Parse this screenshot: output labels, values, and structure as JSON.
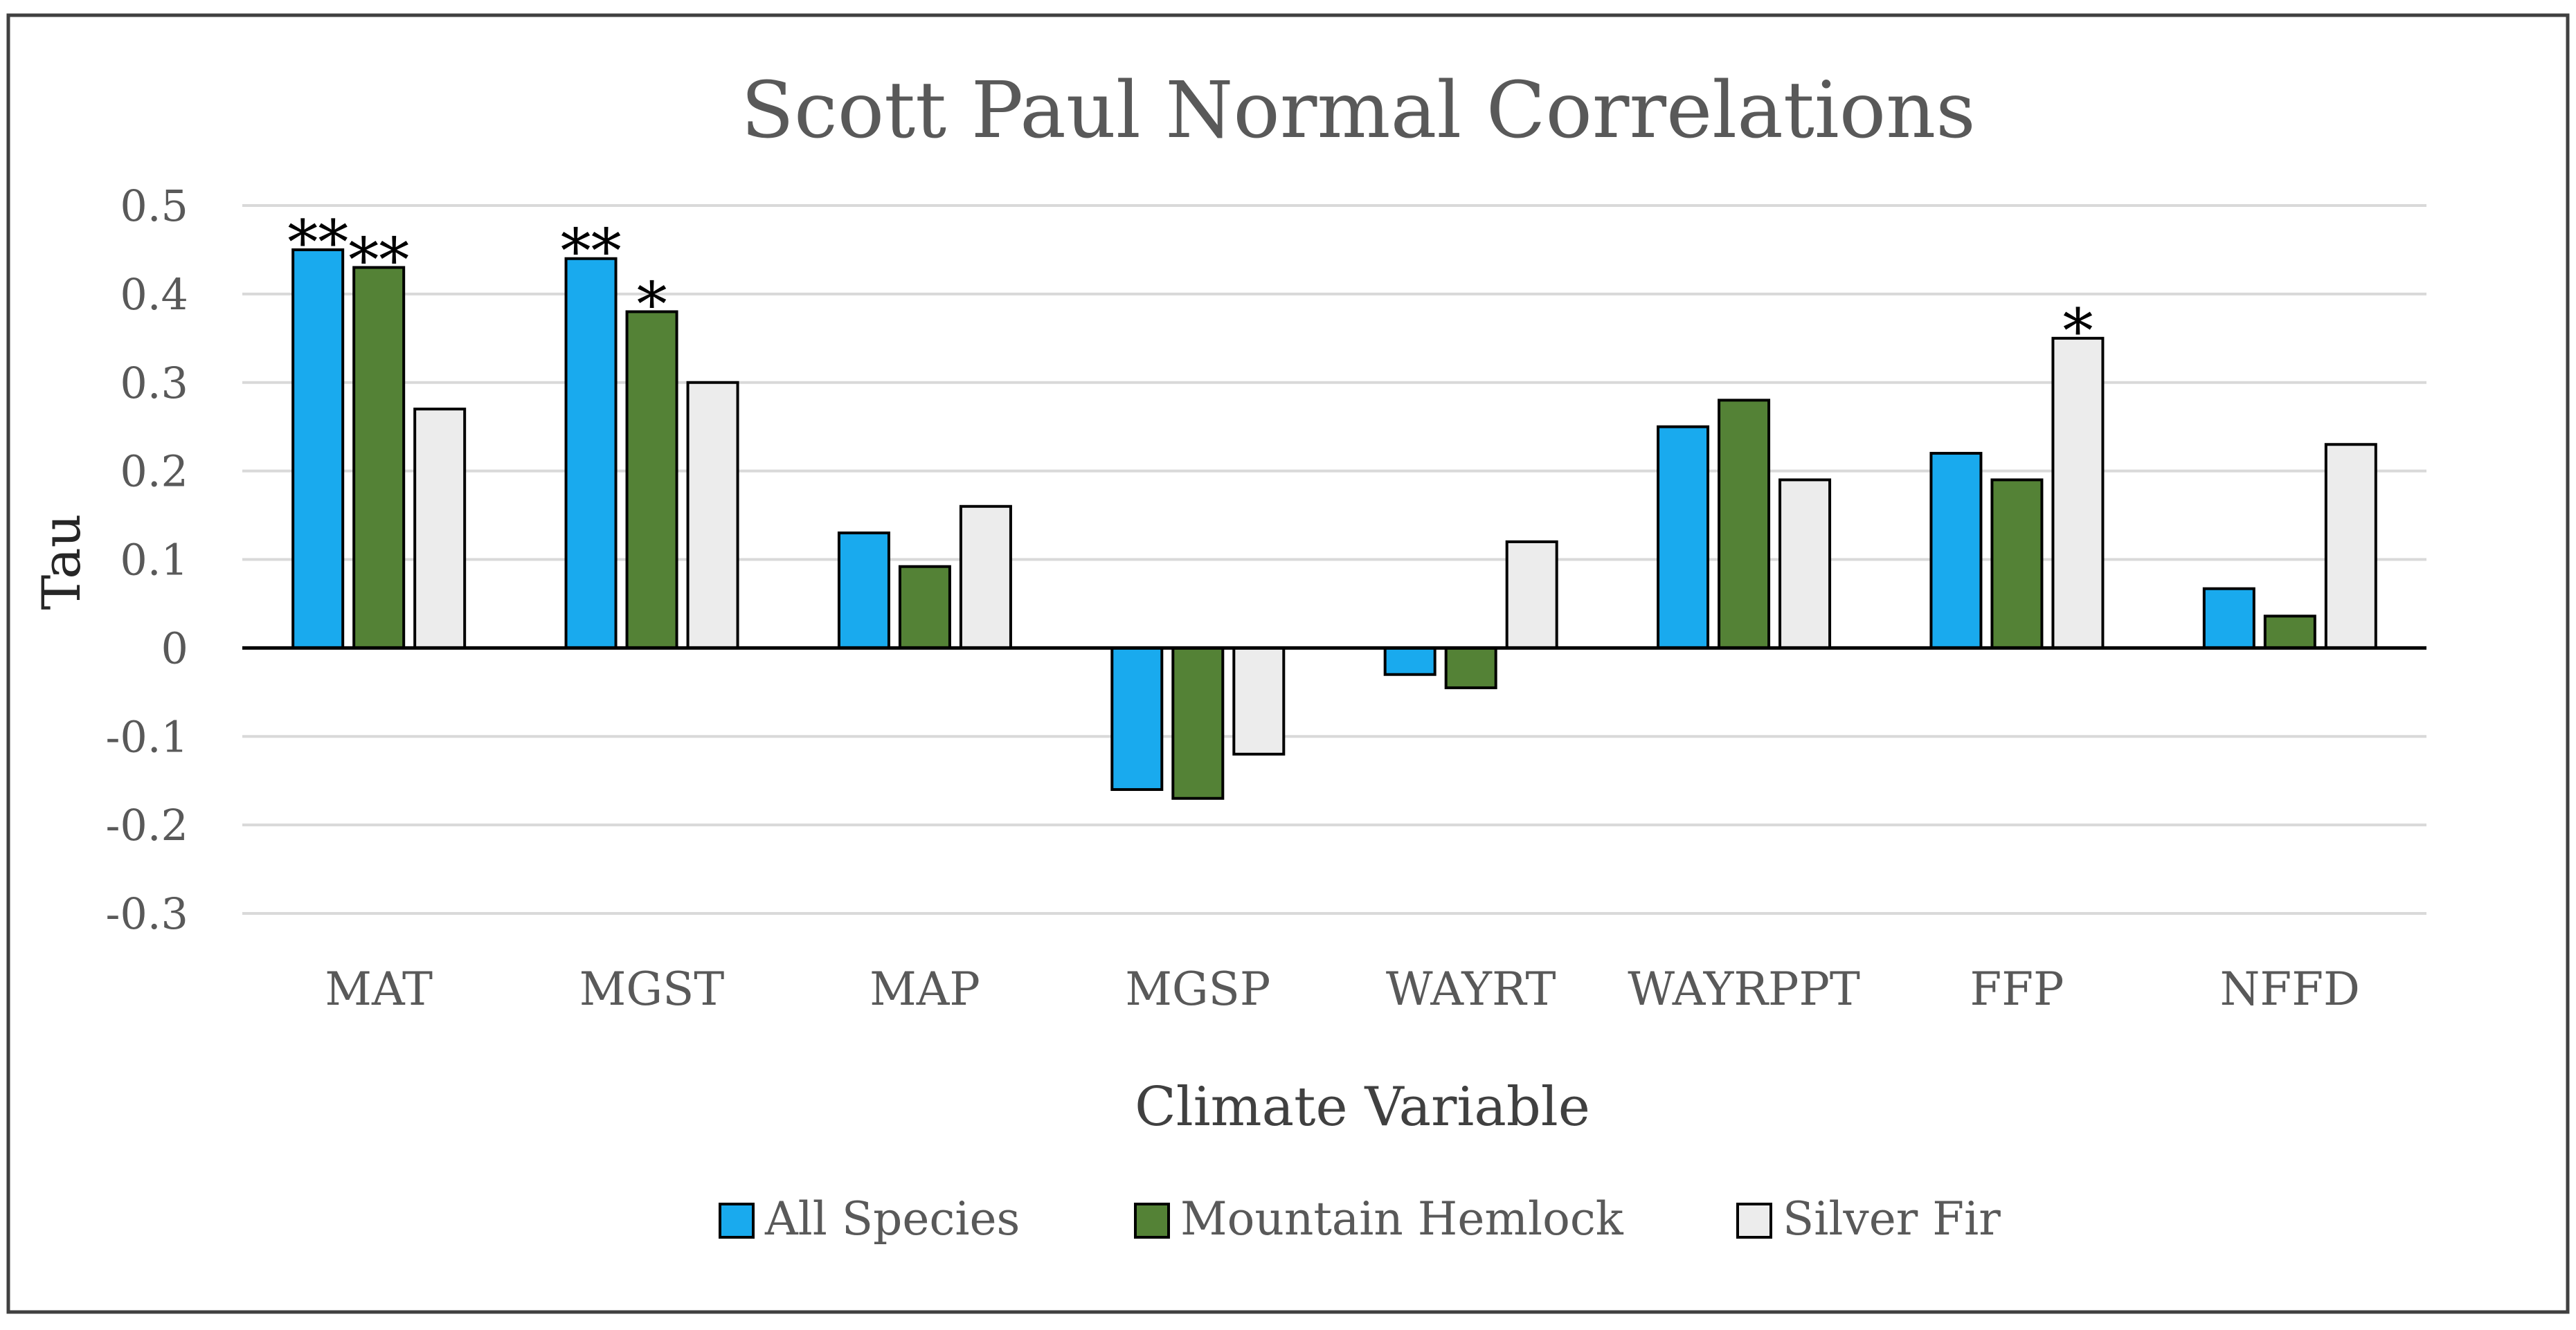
{
  "chart_data": {
    "type": "bar",
    "title": "Scott Paul Normal Correlations",
    "xlabel": "Climate Variable",
    "ylabel": "Tau",
    "ylim": [
      -0.3,
      0.5
    ],
    "yticks": [
      0.5,
      0.4,
      0.3,
      0.2,
      0.1,
      0,
      -0.1,
      -0.2,
      -0.3
    ],
    "ytick_labels": [
      "0.5",
      "0.4",
      "0.3",
      "0.2",
      "0.1",
      "0",
      "-0.1",
      "-0.2",
      "-0.3"
    ],
    "grid": true,
    "legend_position": "bottom-center",
    "categories": [
      "MAT",
      "MGST",
      "MAP",
      "MGSP",
      "WAYRT",
      "WAYRPPT",
      "FFP",
      "NFFD"
    ],
    "series": [
      {
        "name": "All Species",
        "color": "#19aaee",
        "values": [
          0.45,
          0.44,
          0.13,
          -0.16,
          -0.03,
          0.25,
          0.22,
          0.067
        ],
        "annotations": [
          "**",
          "**",
          "",
          "",
          "",
          "",
          "",
          ""
        ]
      },
      {
        "name": "Mountain Hemlock",
        "color": "#548236",
        "values": [
          0.43,
          0.38,
          0.092,
          -0.17,
          -0.045,
          0.28,
          0.19,
          0.036
        ],
        "annotations": [
          "**",
          "*",
          "",
          "",
          "",
          "",
          "",
          ""
        ]
      },
      {
        "name": "Silver Fir",
        "color": "#ececec",
        "values": [
          0.27,
          0.3,
          0.16,
          -0.12,
          0.12,
          0.19,
          0.35,
          0.23
        ],
        "annotations": [
          "",
          "",
          "",
          "",
          "",
          "",
          "*",
          ""
        ]
      }
    ]
  }
}
